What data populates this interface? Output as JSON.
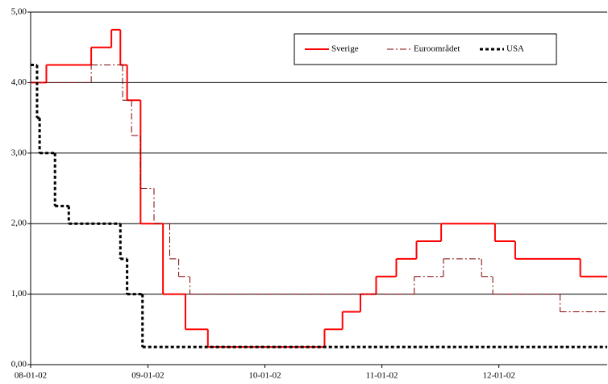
{
  "chart_data": {
    "type": "step-line",
    "xlim": [
      "2008-01-02",
      "2012-12-05"
    ],
    "xticks": [
      {
        "value": "2008-01-02",
        "label": "08-01-02"
      },
      {
        "value": "2009-01-02",
        "label": "09-01-02"
      },
      {
        "value": "2010-01-02",
        "label": "10-01-02"
      },
      {
        "value": "2011-01-02",
        "label": "11-01-02"
      },
      {
        "value": "2012-01-02",
        "label": "12-01-02"
      }
    ],
    "ylim": [
      0,
      5
    ],
    "yticks": [
      {
        "value": 0,
        "label": "0,00"
      },
      {
        "value": 1,
        "label": "1,00"
      },
      {
        "value": 2,
        "label": "2,00"
      },
      {
        "value": 3,
        "label": "3,00"
      },
      {
        "value": 4,
        "label": "4,00"
      },
      {
        "value": 5,
        "label": "5,00"
      }
    ],
    "grid": true,
    "legend": "top-right",
    "series": [
      {
        "name": "Sverige",
        "color": "#ff0000",
        "dash": "solid",
        "width": 2,
        "x": [
          "2008-01-02",
          "2008-02-20",
          "2008-07-09",
          "2008-09-10",
          "2008-10-08",
          "2008-10-29",
          "2008-12-10",
          "2009-02-18",
          "2009-04-29",
          "2009-07-08",
          "2010-07-07",
          "2010-09-01",
          "2010-10-27",
          "2010-12-15",
          "2011-02-16",
          "2011-04-20",
          "2011-07-06",
          "2011-12-21",
          "2012-02-22",
          "2012-09-12"
        ],
        "values": [
          4.0,
          4.25,
          4.5,
          4.75,
          4.25,
          3.75,
          2.0,
          1.0,
          0.5,
          0.25,
          0.5,
          0.75,
          1.0,
          1.25,
          1.5,
          1.75,
          2.0,
          1.75,
          1.5,
          1.25
        ]
      },
      {
        "name": "Euroområdet",
        "color": "#800000",
        "dash": "dash-dot",
        "width": 1,
        "x": [
          "2008-01-02",
          "2008-07-09",
          "2008-10-15",
          "2008-11-12",
          "2008-12-10",
          "2009-01-21",
          "2009-03-11",
          "2009-04-08",
          "2009-05-13",
          "2011-04-13",
          "2011-07-13",
          "2011-11-09",
          "2011-12-14",
          "2012-07-11"
        ],
        "values": [
          4.0,
          4.25,
          3.75,
          3.25,
          2.5,
          2.0,
          1.5,
          1.25,
          1.0,
          1.25,
          1.5,
          1.25,
          1.0,
          0.75
        ]
      },
      {
        "name": "USA",
        "color": "#000000",
        "dash": "dotted",
        "width": 3,
        "x": [
          "2008-01-02",
          "2008-01-22",
          "2008-01-30",
          "2008-03-18",
          "2008-04-30",
          "2008-10-08",
          "2008-10-29",
          "2008-12-16"
        ],
        "values": [
          4.25,
          3.5,
          3.0,
          2.25,
          2.0,
          1.5,
          1.0,
          0.25
        ]
      }
    ]
  }
}
